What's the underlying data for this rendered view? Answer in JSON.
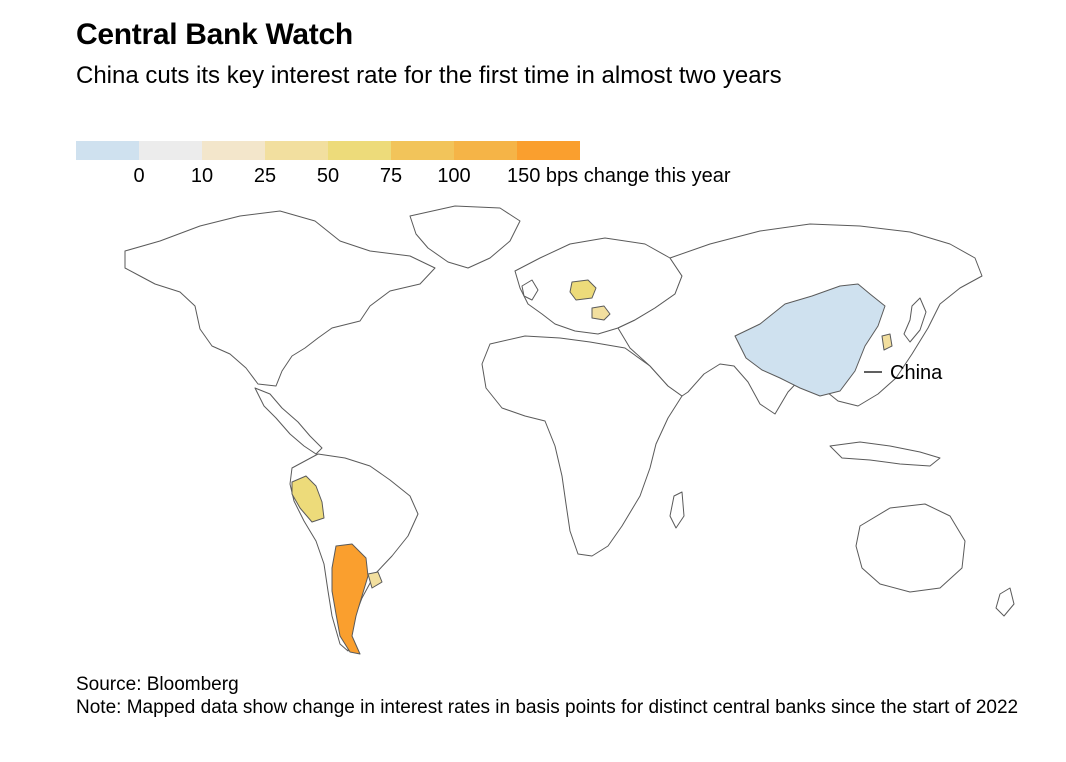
{
  "header": {
    "title": "Central Bank Watch",
    "subtitle": "China cuts its key interest rate for the first time in almost two years"
  },
  "legend": {
    "colors": [
      "#cfe1ef",
      "#ececec",
      "#f3e6cb",
      "#f2df9f",
      "#eddb7a",
      "#f2c45a",
      "#f5b447",
      "#fa9f2e"
    ],
    "labels": [
      "0",
      "10",
      "25",
      "50",
      "75",
      "100",
      "150 bps change this year"
    ]
  },
  "map": {
    "base_fill": "#ffffff",
    "border_color": "#5a5a5a",
    "highlighted": [
      {
        "country": "Argentina",
        "bucket": 7
      },
      {
        "country": "Peru",
        "bucket": 4
      },
      {
        "country": "Uruguay",
        "bucket": 3
      },
      {
        "country": "Poland",
        "bucket": 4
      },
      {
        "country": "Romania",
        "bucket": 3
      },
      {
        "country": "South Korea",
        "bucket": 3
      },
      {
        "country": "China",
        "bucket": 0
      }
    ],
    "annotation": "China"
  },
  "footer": {
    "source": "Source: Bloomberg",
    "note": "Note: Mapped data show change in interest rates in basis points for distinct central banks since the start of 2022"
  }
}
